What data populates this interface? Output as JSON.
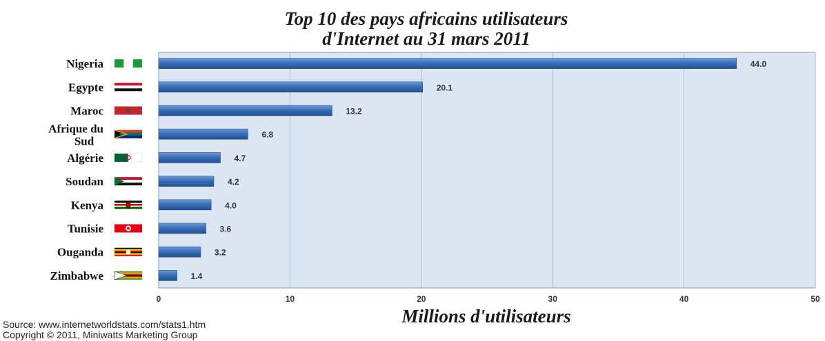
{
  "chart_data": {
    "type": "bar",
    "orientation": "horizontal",
    "title_lines": [
      "Top 10 des pays africains utilisateurs",
      "d'Internet  au 31 mars 2011"
    ],
    "xlabel": "Millions d'utilisateurs",
    "xlim": [
      0,
      50
    ],
    "xticks": [
      "0",
      "10",
      "20",
      "30",
      "40",
      "50"
    ],
    "grid": true,
    "categories": [
      [
        "Nigeria"
      ],
      [
        "Egypte"
      ],
      [
        "Maroc"
      ],
      [
        "Afrique du",
        "Sud"
      ],
      [
        "Algérie"
      ],
      [
        "Soudan"
      ],
      [
        "Kenya"
      ],
      [
        "Tunisie"
      ],
      [
        "Ouganda"
      ],
      [
        "Zimbabwe"
      ]
    ],
    "values": [
      44.0,
      20.1,
      13.2,
      6.8,
      4.7,
      4.2,
      4.0,
      3.6,
      3.2,
      1.4
    ],
    "value_labels": [
      "44.0",
      "20.1",
      "13.2",
      "6.8",
      "4.7",
      "4.2",
      "4.0",
      "3.6",
      "3.2",
      "1.4"
    ],
    "flags": [
      "nigeria-flag-icon",
      "egypt-flag-icon",
      "morocco-flag-icon",
      "south-africa-flag-icon",
      "algeria-flag-icon",
      "sudan-flag-icon",
      "kenya-flag-icon",
      "tunisia-flag-icon",
      "uganda-flag-icon",
      "zimbabwe-flag-icon"
    ],
    "colors": {
      "bar": "#3a6fb8",
      "bar_dark": "#24508f",
      "plot_bg": "#dce6f2",
      "grid": "#aab9cf"
    }
  },
  "source": {
    "line1": "Source: www.internetworldstats.com/stats1.htm",
    "line2": "Copyright © 2011, Miniwatts Marketing Group"
  }
}
